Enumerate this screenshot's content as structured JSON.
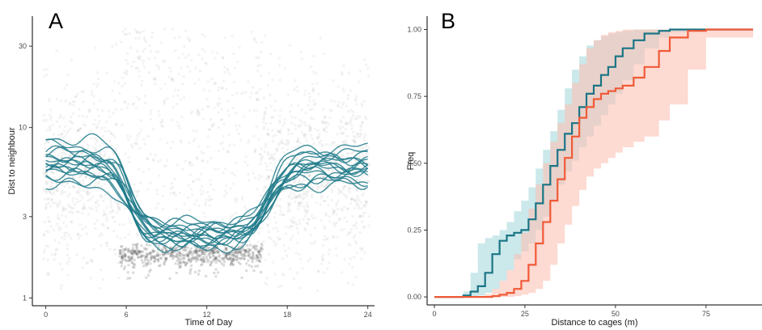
{
  "chart_data": [
    {
      "panel_label": "A",
      "type": "line",
      "xlabel": "Time of Day",
      "ylabel": "Dist to neighbour",
      "y_scale": "log",
      "xlim": [
        -1,
        24.5
      ],
      "ylim": [
        0.9,
        45
      ],
      "x_ticks": [
        0,
        6,
        12,
        18,
        24
      ],
      "x_tick_labels": [
        "0",
        "6",
        "12",
        "18",
        "24"
      ],
      "y_ticks": [
        1,
        3,
        10,
        30
      ],
      "y_tick_labels": [
        "1",
        "3",
        "10",
        "30"
      ],
      "grid": false,
      "legend": "none",
      "series_color": "#1f7a89",
      "background_points": "dense grey scatter of individual distances (approx. 1.2–35), tight dark band near 1.8 between hours 5.5 and 16",
      "series_profile": {
        "x": [
          0,
          2,
          4,
          5,
          6,
          7,
          8,
          10,
          12,
          14,
          15,
          16,
          17,
          18,
          20,
          22,
          24
        ],
        "note": "each curve = per-day smoothed distance; day-time trough near 2.2–2.6"
      },
      "series": [
        {
          "day_level": 7.2,
          "night_level": 6.6,
          "trough": 2.25
        },
        {
          "day_level": 6.4,
          "night_level": 6.0,
          "trough": 2.45
        },
        {
          "day_level": 5.9,
          "night_level": 5.6,
          "trough": 2.1
        },
        {
          "day_level": 8.6,
          "night_level": 7.6,
          "trough": 2.6
        },
        {
          "day_level": 6.8,
          "night_level": 5.2,
          "trough": 2.35
        },
        {
          "day_level": 5.3,
          "night_level": 6.3,
          "trough": 2.2
        },
        {
          "day_level": 6.1,
          "night_level": 4.8,
          "trough": 2.5
        },
        {
          "day_level": 5.6,
          "night_level": 5.9,
          "trough": 2.0
        },
        {
          "day_level": 7.8,
          "night_level": 6.9,
          "trough": 2.7
        },
        {
          "day_level": 4.9,
          "night_level": 5.4,
          "trough": 2.3
        },
        {
          "day_level": 6.5,
          "night_level": 7.1,
          "trough": 2.15
        },
        {
          "day_level": 5.8,
          "night_level": 4.6,
          "trough": 2.55
        },
        {
          "day_level": 6.2,
          "night_level": 6.4,
          "trough": 2.4
        },
        {
          "day_level": 4.6,
          "night_level": 5.0,
          "trough": 2.05
        },
        {
          "day_level": 7.0,
          "night_level": 5.7,
          "trough": 2.8
        },
        {
          "day_level": 5.5,
          "night_level": 6.1,
          "trough": 2.25
        }
      ]
    },
    {
      "panel_label": "B",
      "type": "line",
      "xlabel": "Distance to cages (m)",
      "ylabel": "Freq",
      "xlim": [
        -2,
        90
      ],
      "ylim": [
        -0.03,
        1.05
      ],
      "x_ticks": [
        0,
        25,
        50,
        75
      ],
      "x_tick_labels": [
        "0",
        "25",
        "50",
        "75"
      ],
      "y_ticks": [
        0,
        0.25,
        0.5,
        0.75,
        1
      ],
      "y_tick_labels": [
        "0.00",
        "0.25",
        "0.50",
        "0.75",
        "1.00"
      ],
      "grid": false,
      "legend": "none",
      "series": [
        {
          "color": "#1a7585",
          "ribbon_color": "#a9d8dc",
          "x": [
            0,
            5,
            8,
            10,
            12,
            14,
            16,
            18,
            20,
            22,
            24,
            26,
            28,
            30,
            32,
            34,
            36,
            38,
            40,
            42,
            44,
            46,
            48,
            50,
            52,
            55,
            58,
            62,
            65,
            70,
            75,
            88
          ],
          "y": [
            0,
            0,
            0.005,
            0.02,
            0.04,
            0.09,
            0.16,
            0.21,
            0.23,
            0.24,
            0.25,
            0.29,
            0.35,
            0.42,
            0.49,
            0.55,
            0.61,
            0.65,
            0.71,
            0.76,
            0.79,
            0.83,
            0.86,
            0.9,
            0.93,
            0.96,
            0.985,
            0.995,
            1,
            1,
            1,
            1
          ],
          "lo": [
            0,
            0,
            0,
            0,
            0.005,
            0.015,
            0.03,
            0.06,
            0.1,
            0.14,
            0.17,
            0.2,
            0.25,
            0.3,
            0.36,
            0.42,
            0.47,
            0.51,
            0.56,
            0.6,
            0.64,
            0.68,
            0.72,
            0.76,
            0.81,
            0.87,
            0.93,
            0.97,
            0.99,
            1,
            1,
            1
          ],
          "hi": [
            0,
            0,
            0.02,
            0.09,
            0.2,
            0.22,
            0.23,
            0.25,
            0.28,
            0.32,
            0.36,
            0.41,
            0.48,
            0.55,
            0.62,
            0.7,
            0.78,
            0.85,
            0.9,
            0.94,
            0.96,
            0.975,
            0.985,
            0.99,
            0.995,
            1,
            1,
            1,
            1,
            1,
            1,
            1
          ]
        },
        {
          "color": "#f05a38",
          "ribbon_color": "#fcc1b4",
          "x": [
            0,
            5,
            8,
            10,
            12,
            14,
            16,
            18,
            20,
            22,
            24,
            26,
            28,
            30,
            32,
            34,
            36,
            38,
            40,
            42,
            44,
            46,
            48,
            50,
            52,
            55,
            58,
            62,
            65,
            70,
            75,
            88
          ],
          "y": [
            0,
            0,
            0,
            0,
            0,
            0,
            0.003,
            0.008,
            0.015,
            0.03,
            0.06,
            0.12,
            0.2,
            0.28,
            0.36,
            0.44,
            0.52,
            0.6,
            0.67,
            0.71,
            0.74,
            0.76,
            0.77,
            0.78,
            0.79,
            0.82,
            0.86,
            0.92,
            0.97,
            0.995,
            1,
            1
          ],
          "lo": [
            0,
            0,
            0,
            0,
            0,
            0,
            0,
            0,
            0,
            0.003,
            0.008,
            0.015,
            0.03,
            0.06,
            0.12,
            0.2,
            0.27,
            0.34,
            0.4,
            0.45,
            0.48,
            0.5,
            0.52,
            0.54,
            0.56,
            0.58,
            0.6,
            0.66,
            0.72,
            0.85,
            0.97,
            1
          ],
          "hi": [
            0,
            0,
            0,
            0,
            0,
            0.01,
            0.03,
            0.06,
            0.1,
            0.16,
            0.24,
            0.33,
            0.42,
            0.5,
            0.58,
            0.65,
            0.72,
            0.8,
            0.87,
            0.93,
            0.96,
            0.98,
            0.99,
            0.995,
            1,
            1,
            1,
            1,
            1,
            1,
            1,
            1
          ]
        }
      ]
    }
  ]
}
